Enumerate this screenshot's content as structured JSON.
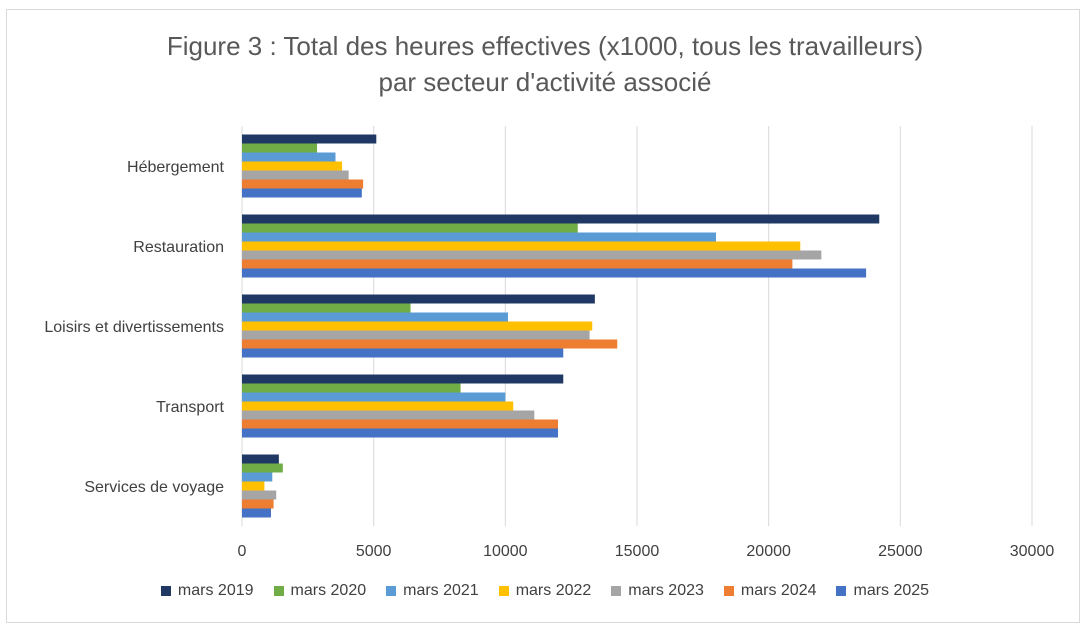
{
  "chart_data": {
    "type": "bar",
    "orientation": "horizontal",
    "title_line1": "Figure 3 : Total des heures effectives (x1000, tous les travailleurs)",
    "title_line2": "par secteur d'activité associé",
    "categories": [
      "Hébergement",
      "Restauration",
      "Loisirs et divertissements",
      "Transport",
      "Services de voyage"
    ],
    "xlim": [
      0,
      30000
    ],
    "xticks": [
      "0",
      "5000",
      "10000",
      "15000",
      "20000",
      "25000",
      "30000"
    ],
    "xtick_values": [
      0,
      5000,
      10000,
      15000,
      20000,
      25000,
      30000
    ],
    "grid": "vertical",
    "legend_position": "bottom",
    "series": [
      {
        "name": "mars 2019",
        "color": "#203864",
        "values": [
          5100,
          24200,
          13400,
          12200,
          1400
        ]
      },
      {
        "name": "mars 2020",
        "color": "#70ad47",
        "values": [
          2850,
          12750,
          6400,
          8300,
          1550
        ]
      },
      {
        "name": "mars 2021",
        "color": "#5b9bd5",
        "values": [
          3550,
          18000,
          10100,
          10000,
          1150
        ]
      },
      {
        "name": "mars 2022",
        "color": "#ffc000",
        "values": [
          3800,
          21200,
          13300,
          10300,
          850
        ]
      },
      {
        "name": "mars 2023",
        "color": "#a5a5a5",
        "values": [
          4050,
          22000,
          13200,
          11100,
          1300
        ]
      },
      {
        "name": "mars 2024",
        "color": "#ed7d31",
        "values": [
          4600,
          20900,
          14250,
          12000,
          1200
        ]
      },
      {
        "name": "mars 2025",
        "color": "#4472c4",
        "values": [
          4550,
          23700,
          12200,
          12000,
          1100
        ]
      }
    ]
  }
}
